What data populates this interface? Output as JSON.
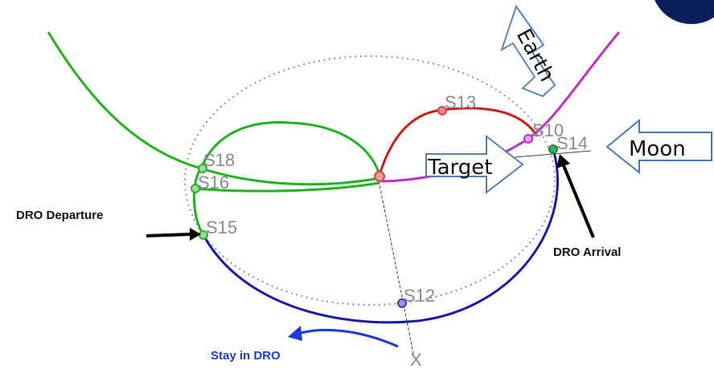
{
  "annotations": {
    "departure": "DRO Departure",
    "arrival": "DRO Arrival",
    "stay": "Stay in DRO"
  },
  "directions": {
    "earth": "Earth",
    "moon": "Moon",
    "target": "Target"
  },
  "points": {
    "s13": "S13",
    "s18": "S18",
    "s16": "S16",
    "s15": "S15",
    "s12": "S12",
    "s10": "S10",
    "s14": "S14"
  },
  "axis": {
    "x": "X"
  }
}
